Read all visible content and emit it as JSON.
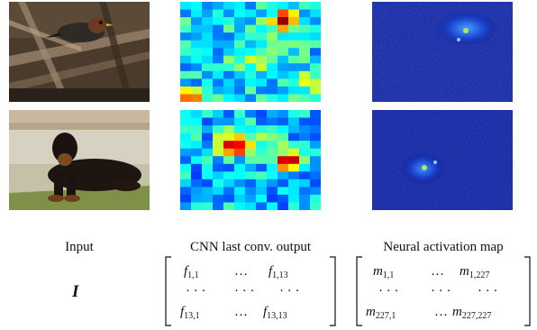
{
  "labels": {
    "input": "Input",
    "cnn": "CNN last conv. output",
    "neural": "Neural activation map",
    "symbol": "I"
  },
  "cnn_matrix": {
    "r1": [
      "f",
      "1,1",
      "f",
      "1,13"
    ],
    "r3": [
      "f",
      "13,1",
      "f",
      "13,13"
    ]
  },
  "neural_matrix": {
    "r1": [
      "m",
      "1,1",
      "m",
      "1,227"
    ],
    "r3": [
      "m",
      "227,1",
      "m",
      "227,227"
    ]
  },
  "ellipsis": "…",
  "ellipsis_mid": "· · ·",
  "colors": {
    "jet_low": "#00008f",
    "jet_high": "#800000",
    "activation_bg": "#0a1a9a"
  }
}
